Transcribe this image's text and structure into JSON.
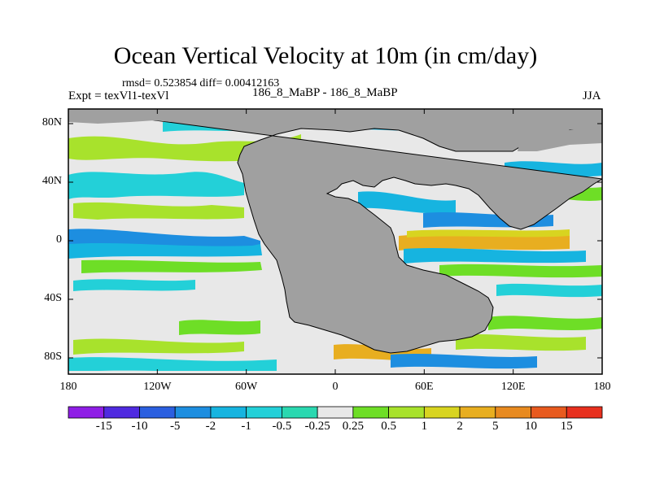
{
  "title": "Ocean Vertical Velocity at 10m (in cm/day)",
  "stats": "rmsd= 0.523854 diff= 0.00412163",
  "expt": "Expt = texVl1-texVl",
  "runs": "186_8_MaBP - 186_8_MaBP",
  "season": "JJA",
  "colors": {
    "land": "#a0a0a0",
    "ocean_near_zero": "#e8e8e8"
  },
  "y_axis": {
    "ticks": [
      {
        "lat": 80,
        "label": "80N"
      },
      {
        "lat": 40,
        "label": "40N"
      },
      {
        "lat": 0,
        "label": "0"
      },
      {
        "lat": -40,
        "label": "40S"
      },
      {
        "lat": -80,
        "label": "80S"
      }
    ]
  },
  "x_axis": {
    "ticks": [
      {
        "lon": -180,
        "label": "180"
      },
      {
        "lon": -120,
        "label": "120W"
      },
      {
        "lon": -60,
        "label": "60W"
      },
      {
        "lon": 0,
        "label": "0"
      },
      {
        "lon": 60,
        "label": "60E"
      },
      {
        "lon": 120,
        "label": "120E"
      },
      {
        "lon": 180,
        "label": "180"
      }
    ]
  },
  "colorbar": {
    "colors": [
      "#8f1ee6",
      "#4f2ae0",
      "#2b5fe0",
      "#1d8ee0",
      "#16b4e0",
      "#23d0d8",
      "#2ad8b0",
      "#e8e8e8",
      "#6ede26",
      "#a8e22c",
      "#d8d420",
      "#e8ae20",
      "#e88a20",
      "#e85a1e",
      "#e8301e"
    ],
    "labels": [
      "-15",
      "-10",
      "-5",
      "-2",
      "-1",
      "-0.5",
      "-0.25",
      "0.25",
      "0.5",
      "1",
      "2",
      "5",
      "10",
      "15"
    ]
  }
}
